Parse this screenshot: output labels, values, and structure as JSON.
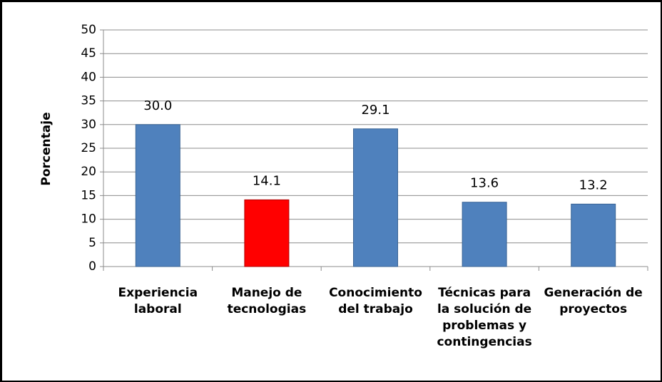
{
  "chart_data": {
    "type": "bar",
    "y_label": "Porcentaje",
    "categories": [
      "Experiencia laboral",
      "Manejo de tecnologias",
      "Conocimiento del trabajo",
      "Técnicas para la solución de problemas y contingencias",
      "Generación de proyectos"
    ],
    "values": [
      30.0,
      14.1,
      29.1,
      13.6,
      13.2
    ],
    "value_labels": [
      "30.0",
      "14.1",
      "29.1",
      "13.6",
      "13.2"
    ],
    "colors": [
      "#4f81bd",
      "#ff0000",
      "#4f81bd",
      "#4f81bd",
      "#4f81bd"
    ],
    "ylim": [
      0,
      50
    ],
    "yticks": [
      0,
      5,
      10,
      15,
      20,
      25,
      30,
      35,
      40,
      45,
      50
    ],
    "grid": true
  }
}
